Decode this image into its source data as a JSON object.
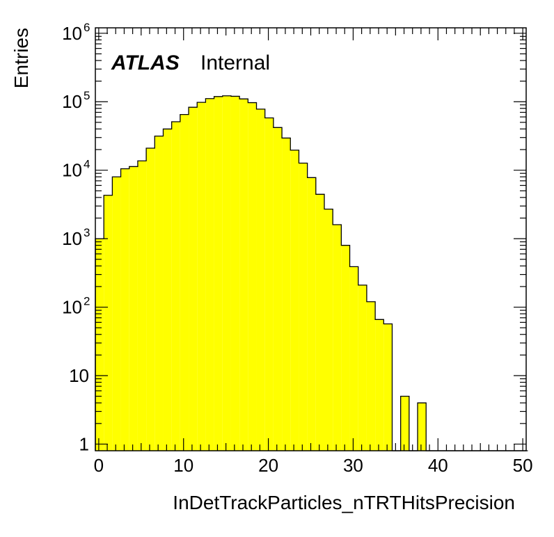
{
  "chart_data": {
    "type": "bar",
    "histogram": true,
    "xlabel": "InDetTrackParticles_nTRTHitsPrecision",
    "ylabel": "Entries",
    "xlim": [
      -0.4,
      50.4
    ],
    "ylim": [
      0.8,
      1200000
    ],
    "yscale": "log",
    "grid": false,
    "fill_color": "#ffff00",
    "edge_color": "#000000",
    "x_ticks": [
      "0",
      "10",
      "20",
      "30",
      "40",
      "50"
    ],
    "y_tick_labels": [
      {
        "value": 1,
        "base": "1",
        "exp": ""
      },
      {
        "value": 10,
        "base": "10",
        "exp": ""
      },
      {
        "value": 100,
        "base": "10",
        "exp": "2"
      },
      {
        "value": 1000,
        "base": "10",
        "exp": "3"
      },
      {
        "value": 10000,
        "base": "10",
        "exp": "4"
      },
      {
        "value": 100000,
        "base": "10",
        "exp": "5"
      },
      {
        "value": 1000000,
        "base": "10",
        "exp": "6"
      }
    ],
    "bin_width": 1,
    "bin_low_edges": [
      -0.4,
      0.6,
      1.6,
      2.6,
      3.6,
      4.6,
      5.6,
      6.6,
      7.6,
      8.6,
      9.6,
      10.6,
      11.6,
      12.6,
      13.6,
      14.6,
      15.6,
      16.6,
      17.6,
      18.6,
      19.6,
      20.6,
      21.6,
      22.6,
      23.6,
      24.6,
      25.6,
      26.6,
      27.6,
      28.6,
      29.6,
      30.6,
      31.6,
      32.6,
      33.6,
      34.6,
      35.6,
      36.6,
      37.6,
      38.6,
      39.6,
      40.6,
      41.6,
      42.6,
      43.6,
      44.6,
      45.6,
      46.6,
      47.6,
      48.6,
      49.6
    ],
    "values": [
      1000,
      4300,
      8000,
      10500,
      11300,
      13700,
      21000,
      31500,
      40000,
      51000,
      65000,
      83000,
      98000,
      111000,
      119000,
      122000,
      120000,
      110000,
      97000,
      78000,
      58000,
      42000,
      29500,
      19600,
      12700,
      7800,
      4450,
      2700,
      1600,
      800,
      390,
      210,
      120,
      66,
      57,
      0,
      5,
      0,
      4,
      0,
      0,
      0,
      0,
      0,
      0,
      0,
      0,
      0,
      0,
      0,
      0
    ],
    "annotations": [
      {
        "label": "ATLAS",
        "style": "bold-italic"
      },
      {
        "label": "Internal",
        "style": "regular"
      }
    ]
  }
}
